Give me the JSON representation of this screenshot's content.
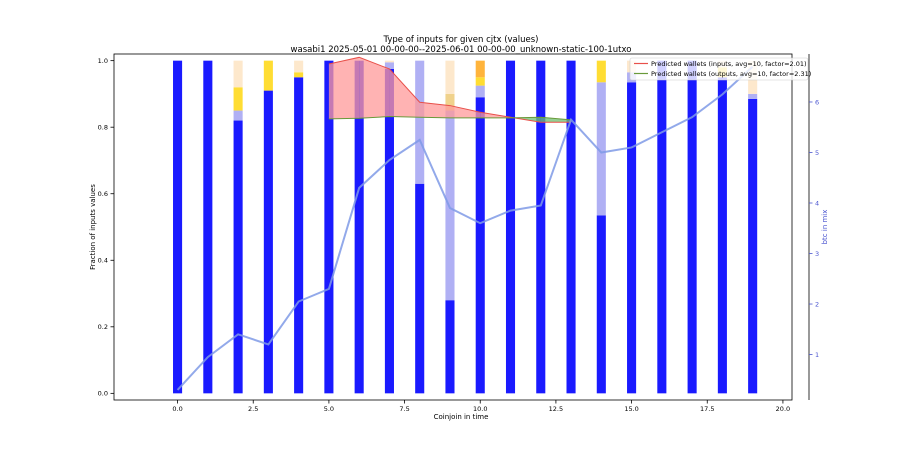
{
  "chart_data": {
    "type": "bar",
    "title": "Type of inputs for given cjtx (values)",
    "subtitle": "wasabi1 2025-05-01 00-00-00--2025-06-01 00-00-00_unknown-static-100-1utxo",
    "xlabel": "Coinjoin in time",
    "ylabel": "Fraction of inputs values",
    "ylabel_right": "btc in mix",
    "xlim": [
      -2.1,
      20.3
    ],
    "ylim": [
      -0.02,
      1.02
    ],
    "y2lim": [
      0.1,
      6.95
    ],
    "x_ticks": [
      "0.0",
      "2.5",
      "5.0",
      "7.5",
      "10.0",
      "12.5",
      "15.0",
      "17.5",
      "20.0"
    ],
    "x_tick_values": [
      0,
      2.5,
      5,
      7.5,
      10,
      12.5,
      15,
      17.5,
      20
    ],
    "y_ticks": [
      "0.0",
      "0.2",
      "0.4",
      "0.6",
      "0.8",
      "1.0"
    ],
    "y_tick_values": [
      0,
      0.2,
      0.4,
      0.6,
      0.8,
      1.0
    ],
    "y2_ticks": [
      "1",
      "2",
      "3",
      "4",
      "5",
      "6"
    ],
    "y2_tick_values": [
      1,
      2,
      3,
      4,
      5,
      6
    ],
    "x": [
      0,
      1,
      2,
      3,
      4,
      5,
      6,
      7,
      8,
      9,
      10,
      11,
      12,
      13,
      14,
      15,
      16,
      17,
      18,
      19
    ],
    "stack_series": [
      {
        "key": "blue",
        "color": "#1a1aff",
        "values": [
          1.0,
          1.0,
          0.82,
          0.91,
          0.95,
          1.0,
          1.0,
          0.975,
          0.63,
          0.28,
          0.89,
          1.0,
          1.0,
          1.0,
          0.535,
          0.935,
          1.0,
          1.0,
          0.95,
          0.885
        ]
      },
      {
        "key": "lightblue",
        "color": "#b0b0f4",
        "values": [
          0,
          0,
          0.03,
          0,
          0,
          0,
          0,
          0.02,
          0.37,
          0.57,
          0.035,
          0,
          0,
          0,
          0.4,
          0.03,
          0,
          0,
          0,
          0.015
        ]
      },
      {
        "key": "yellow",
        "color": "#ffdd33",
        "values": [
          0,
          0,
          0.07,
          0.09,
          0.015,
          0,
          0,
          0,
          0,
          0,
          0.025,
          0,
          0,
          0,
          0.065,
          0,
          0,
          0,
          0.03,
          0
        ]
      },
      {
        "key": "orange",
        "color": "#ffb43c",
        "values": [
          0,
          0,
          0,
          0,
          0,
          0,
          0,
          0,
          0,
          0,
          0.05,
          0,
          0,
          0,
          0,
          0,
          0,
          0,
          0,
          0
        ]
      },
      {
        "key": "tan",
        "color": "#f0d28c",
        "values": [
          0,
          0,
          0,
          0,
          0,
          0,
          0,
          0,
          0,
          0.05,
          0,
          0,
          0,
          0,
          0,
          0,
          0,
          0,
          0,
          0
        ]
      },
      {
        "key": "cream",
        "color": "#fde8cc",
        "values": [
          0,
          0,
          0.08,
          0,
          0.035,
          0,
          0,
          0.005,
          0,
          0.1,
          0,
          0,
          0,
          0,
          0,
          0.035,
          0,
          0,
          0.02,
          0.1
        ]
      }
    ],
    "btc_in_mix": [
      0.3,
      0.95,
      1.4,
      1.2,
      2.05,
      2.3,
      4.3,
      4.85,
      5.25,
      3.9,
      3.6,
      3.85,
      3.95,
      5.65,
      5.0,
      5.1,
      5.4,
      5.7,
      6.15,
      6.7
    ],
    "predicted_inputs": {
      "name": "Predicted wallets (inputs, avg=10, factor=2.01)",
      "color": "#e8504a",
      "x": [
        5,
        6,
        7,
        8,
        9,
        10,
        11,
        12,
        13
      ],
      "y": [
        0.99,
        1.01,
        0.975,
        0.875,
        0.865,
        0.845,
        0.83,
        0.815,
        0.815
      ]
    },
    "predicted_outputs": {
      "name": "Predicted wallets (outputs, avg=10, factor=2.31)",
      "color": "#6a9a3a",
      "x": [
        5,
        6,
        7,
        8,
        9,
        10,
        11,
        12,
        13
      ],
      "y": [
        0.825,
        0.827,
        0.832,
        0.83,
        0.828,
        0.828,
        0.828,
        0.83,
        0.822
      ]
    },
    "colors": {
      "btc_line": "#7f9ae6",
      "fill_red": "#ff9a9a",
      "fill_green": "#6fbf6f",
      "axis_right": "#4a55d0"
    },
    "legend_position": "top-right",
    "grid": false
  }
}
